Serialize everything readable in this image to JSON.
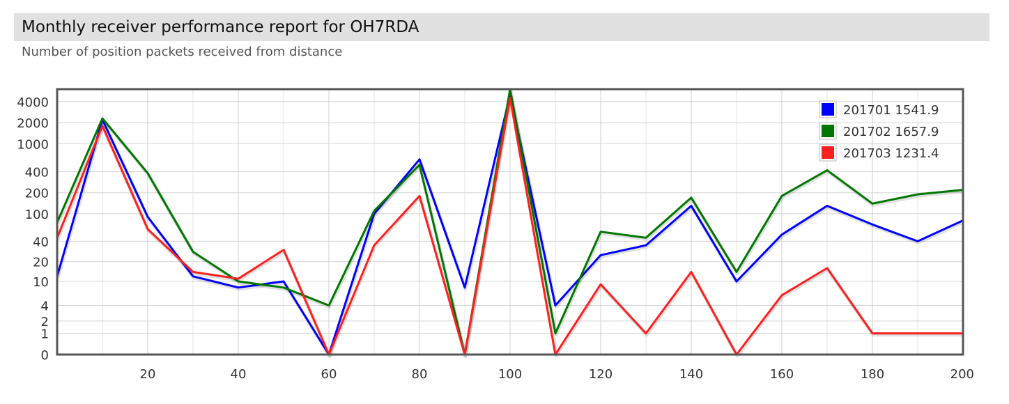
{
  "page": {
    "title": "Monthly receiver performance report for OH7RDA",
    "subtitle": "Number of position packets received from distance"
  },
  "chart_data": {
    "type": "line",
    "title": "Monthly receiver performance report for OH7RDA",
    "subtitle": "Number of position packets received from distance",
    "xlabel": "",
    "ylabel": "",
    "x": [
      0,
      10,
      20,
      30,
      40,
      50,
      60,
      70,
      80,
      90,
      100,
      110,
      120,
      130,
      140,
      150,
      160,
      170,
      180,
      190,
      200
    ],
    "xlim": [
      0,
      200
    ],
    "x_ticks": [
      20,
      40,
      60,
      80,
      100,
      120,
      140,
      160,
      180,
      200
    ],
    "y_scale": "log",
    "y_ticks": [
      0,
      1,
      2,
      4,
      10,
      20,
      40,
      100,
      200,
      400,
      1000,
      2000,
      4000
    ],
    "ylim": [
      0,
      6000
    ],
    "grid": true,
    "legend_position": "top-right",
    "series": [
      {
        "name": "201701 1541.9",
        "color": "#0000ff",
        "values": [
          12,
          2200,
          90,
          12,
          8,
          10,
          0,
          100,
          600,
          8,
          5000,
          4,
          25,
          35,
          130,
          10,
          50,
          130,
          70,
          40,
          80
        ]
      },
      {
        "name": "201702 1657.9",
        "color": "#007700",
        "values": [
          75,
          2300,
          380,
          28,
          10,
          8,
          4,
          110,
          500,
          0,
          6000,
          1,
          55,
          45,
          170,
          14,
          180,
          420,
          140,
          190,
          220
        ]
      },
      {
        "name": "201703 1231.4",
        "color": "#ff2020",
        "values": [
          45,
          1800,
          60,
          14,
          11,
          30,
          0,
          35,
          180,
          0,
          4500,
          0,
          9,
          1,
          14,
          0,
          6,
          16,
          1,
          1,
          1
        ]
      }
    ]
  }
}
